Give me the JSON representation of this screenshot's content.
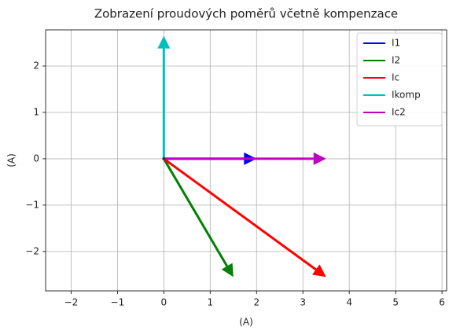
{
  "chart_data": {
    "type": "quiver",
    "title": "Zobrazení proudových poměrů včetně kompenzace",
    "x_label": "(A)",
    "y_label": "(A)",
    "series": [
      {
        "name": "I1",
        "color": "#0000ff",
        "x": [
          0,
          2.0
        ],
        "values": [
          0,
          0
        ]
      },
      {
        "name": "I2",
        "color": "#008000",
        "x": [
          0,
          1.5
        ],
        "values": [
          0,
          -2.55
        ]
      },
      {
        "name": "Ic",
        "color": "#ff0000",
        "x": [
          0,
          3.5
        ],
        "values": [
          0,
          -2.55
        ]
      },
      {
        "name": "Ikomp",
        "color": "#00bfbf",
        "x": [
          0,
          0
        ],
        "values": [
          0,
          2.65
        ]
      },
      {
        "name": "Ic2",
        "color": "#bf00bf",
        "x": [
          0,
          3.5
        ],
        "values": [
          0,
          0
        ]
      }
    ],
    "xlim": [
      -2.55,
      6.1
    ],
    "xticks": [
      {
        "value": -2,
        "label": "−2"
      },
      {
        "value": -1,
        "label": "−1"
      },
      0,
      1,
      2,
      3,
      4,
      5,
      6
    ],
    "ylim": [
      -2.85,
      2.78
    ],
    "yticks": [
      {
        "value": -2,
        "label": "−2"
      },
      {
        "value": -1,
        "label": "−1"
      },
      0,
      1,
      2
    ],
    "grid": true,
    "legend": "upper right"
  }
}
